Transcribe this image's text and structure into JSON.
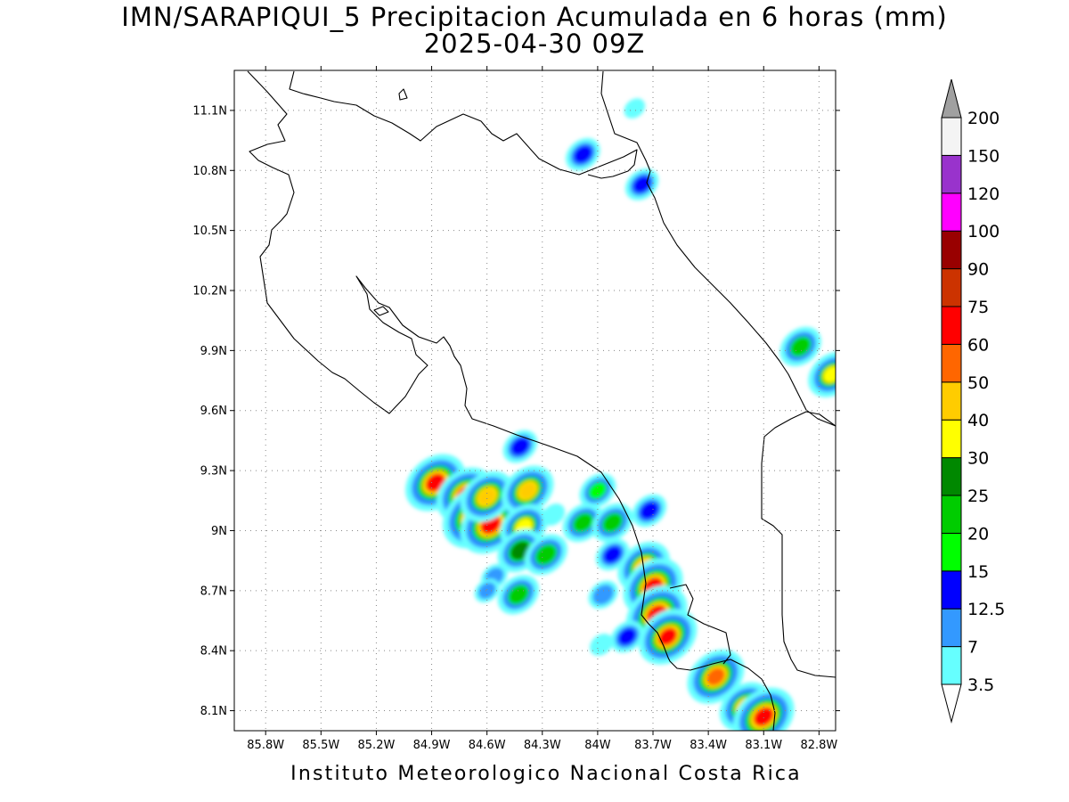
{
  "title": {
    "line1": "IMN/SARAPIQUI_5 Precipitacion Acumulada en 6 horas (mm)",
    "line2": "2025-04-30 09Z"
  },
  "footer": "Instituto Meteorologico Nacional Costa Rica",
  "map": {
    "lon_range": [
      -85.97,
      -82.71
    ],
    "lat_range": [
      8.0,
      11.3
    ],
    "lon_ticks": [
      {
        "value": -85.8,
        "label": "85.8W"
      },
      {
        "value": -85.5,
        "label": "85.5W"
      },
      {
        "value": -85.2,
        "label": "85.2W"
      },
      {
        "value": -84.9,
        "label": "84.9W"
      },
      {
        "value": -84.6,
        "label": "84.6W"
      },
      {
        "value": -84.3,
        "label": "84.3W"
      },
      {
        "value": -84.0,
        "label": "84W"
      },
      {
        "value": -83.7,
        "label": "83.7W"
      },
      {
        "value": -83.4,
        "label": "83.4W"
      },
      {
        "value": -83.1,
        "label": "83.1W"
      },
      {
        "value": -82.8,
        "label": "82.8W"
      }
    ],
    "lat_ticks": [
      {
        "value": 11.1,
        "label": "11.1N"
      },
      {
        "value": 10.8,
        "label": "10.8N"
      },
      {
        "value": 10.5,
        "label": "10.5N"
      },
      {
        "value": 10.2,
        "label": "10.2N"
      },
      {
        "value": 9.9,
        "label": "9.9N"
      },
      {
        "value": 9.6,
        "label": "9.6N"
      },
      {
        "value": 9.3,
        "label": "9.3N"
      },
      {
        "value": 9.0,
        "label": "9N"
      },
      {
        "value": 8.7,
        "label": "8.7N"
      },
      {
        "value": 8.4,
        "label": "8.4N"
      },
      {
        "value": 8.1,
        "label": "8.1N"
      }
    ],
    "grid": true
  },
  "colorbar": {
    "thresholds": [
      "3.5",
      "7",
      "12.5",
      "15",
      "20",
      "25",
      "30",
      "40",
      "50",
      "60",
      "75",
      "90",
      "100",
      "120",
      "150",
      "200"
    ],
    "colors": [
      "#66ffff",
      "#3399ff",
      "#0000ff",
      "#00ff00",
      "#00cc00",
      "#008800",
      "#ffff00",
      "#ffcc00",
      "#ff6600",
      "#ff0000",
      "#cc3300",
      "#990000",
      "#ff00ff",
      "#9933cc",
      "#f4f4f4"
    ],
    "under_color": "#ffffff",
    "over_color": "#a0a0a0"
  },
  "precip_cells": [
    {
      "lon": -84.88,
      "lat": 9.24,
      "peak_mm": 65
    },
    {
      "lon": -84.72,
      "lat": 9.18,
      "peak_mm": 55
    },
    {
      "lon": -84.66,
      "lat": 9.07,
      "peak_mm": 95
    },
    {
      "lon": -84.58,
      "lat": 9.03,
      "peak_mm": 70
    },
    {
      "lon": -84.6,
      "lat": 9.17,
      "peak_mm": 45
    },
    {
      "lon": -84.38,
      "lat": 9.2,
      "peak_mm": 42
    },
    {
      "lon": -84.4,
      "lat": 9.02,
      "peak_mm": 32
    },
    {
      "lon": -84.42,
      "lat": 8.9,
      "peak_mm": 28
    },
    {
      "lon": -84.43,
      "lat": 8.68,
      "peak_mm": 22
    },
    {
      "lon": -84.42,
      "lat": 9.42,
      "peak_mm": 14
    },
    {
      "lon": -84.28,
      "lat": 8.88,
      "peak_mm": 24
    },
    {
      "lon": -84.08,
      "lat": 9.04,
      "peak_mm": 21
    },
    {
      "lon": -83.92,
      "lat": 9.04,
      "peak_mm": 21
    },
    {
      "lon": -84.0,
      "lat": 9.2,
      "peak_mm": 16
    },
    {
      "lon": -83.75,
      "lat": 8.82,
      "peak_mm": 42
    },
    {
      "lon": -83.7,
      "lat": 8.72,
      "peak_mm": 65
    },
    {
      "lon": -83.68,
      "lat": 8.58,
      "peak_mm": 70
    },
    {
      "lon": -83.62,
      "lat": 8.47,
      "peak_mm": 60
    },
    {
      "lon": -83.36,
      "lat": 8.27,
      "peak_mm": 55
    },
    {
      "lon": -83.2,
      "lat": 8.12,
      "peak_mm": 40
    },
    {
      "lon": -83.1,
      "lat": 8.07,
      "peak_mm": 70
    },
    {
      "lon": -83.92,
      "lat": 8.88,
      "peak_mm": 13
    },
    {
      "lon": -83.97,
      "lat": 8.68,
      "peak_mm": 10
    },
    {
      "lon": -83.72,
      "lat": 9.1,
      "peak_mm": 14
    },
    {
      "lon": -84.08,
      "lat": 10.88,
      "peak_mm": 14
    },
    {
      "lon": -83.76,
      "lat": 10.73,
      "peak_mm": 13
    },
    {
      "lon": -82.9,
      "lat": 9.92,
      "peak_mm": 22
    },
    {
      "lon": -82.73,
      "lat": 9.78,
      "peak_mm": 32
    },
    {
      "lon": -84.56,
      "lat": 8.77,
      "peak_mm": 8
    },
    {
      "lon": -84.6,
      "lat": 8.7,
      "peak_mm": 7
    },
    {
      "lon": -83.8,
      "lat": 11.11,
      "peak_mm": 5
    },
    {
      "lon": -83.98,
      "lat": 8.43,
      "peak_mm": 6
    },
    {
      "lon": -83.84,
      "lat": 8.47,
      "peak_mm": 13
    },
    {
      "lon": -84.24,
      "lat": 9.08,
      "peak_mm": 6
    }
  ]
}
